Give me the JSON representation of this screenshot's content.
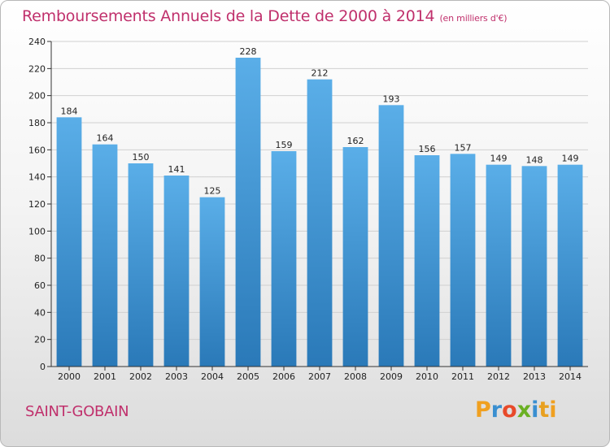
{
  "header": {
    "title": "Remboursements Annuels de la Dette de 2000 à 2014",
    "subtitle": "(en milliers d'€)"
  },
  "footer": {
    "commune": "SAINT-GOBAIN",
    "logo_text": "Proxiti"
  },
  "colors": {
    "title": "#c0306c",
    "bar_top": "#5aaee8",
    "bar_bottom": "#2a79b8",
    "grid": "#d0d0d0"
  },
  "chart_data": {
    "type": "bar",
    "title": "Remboursements Annuels de la Dette de 2000 à 2014",
    "subtitle": "(en milliers d'€)",
    "xlabel": "",
    "ylabel": "",
    "categories": [
      "2000",
      "2001",
      "2002",
      "2003",
      "2004",
      "2005",
      "2006",
      "2007",
      "2008",
      "2009",
      "2010",
      "2011",
      "2012",
      "2013",
      "2014"
    ],
    "values": [
      184,
      164,
      150,
      141,
      125,
      228,
      159,
      212,
      162,
      193,
      156,
      157,
      149,
      148,
      149
    ],
    "ylim": [
      0,
      240
    ],
    "yticks": [
      0,
      20,
      40,
      60,
      80,
      100,
      120,
      140,
      160,
      180,
      200,
      220,
      240
    ],
    "grid": true,
    "legend": "none"
  }
}
